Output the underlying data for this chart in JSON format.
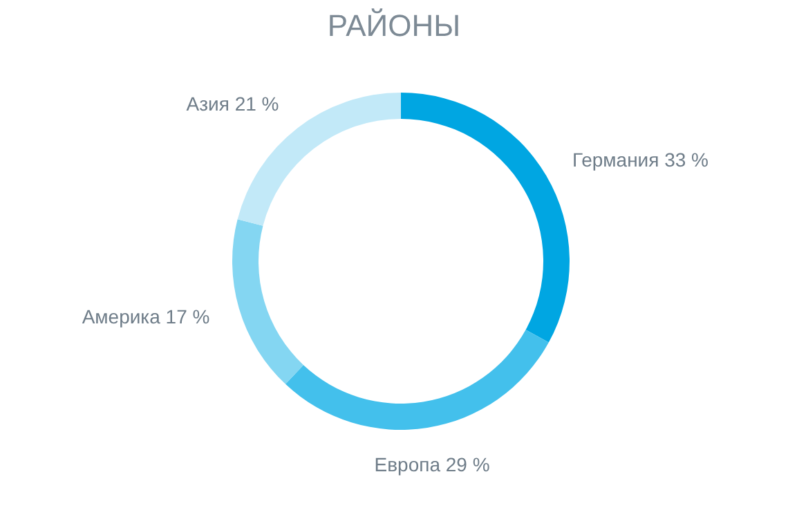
{
  "chart_data": {
    "type": "donut",
    "title": "РАЙОНЫ",
    "categories": [
      "Германия",
      "Европа",
      "Америка",
      "Азия"
    ],
    "values": [
      33,
      29,
      17,
      21
    ],
    "value_labels": [
      "33 %",
      "29 %",
      "17 %",
      "21 %"
    ],
    "colors": [
      "#00a6e2",
      "#43c0ec",
      "#84d6f2",
      "#c2e9f8"
    ]
  }
}
